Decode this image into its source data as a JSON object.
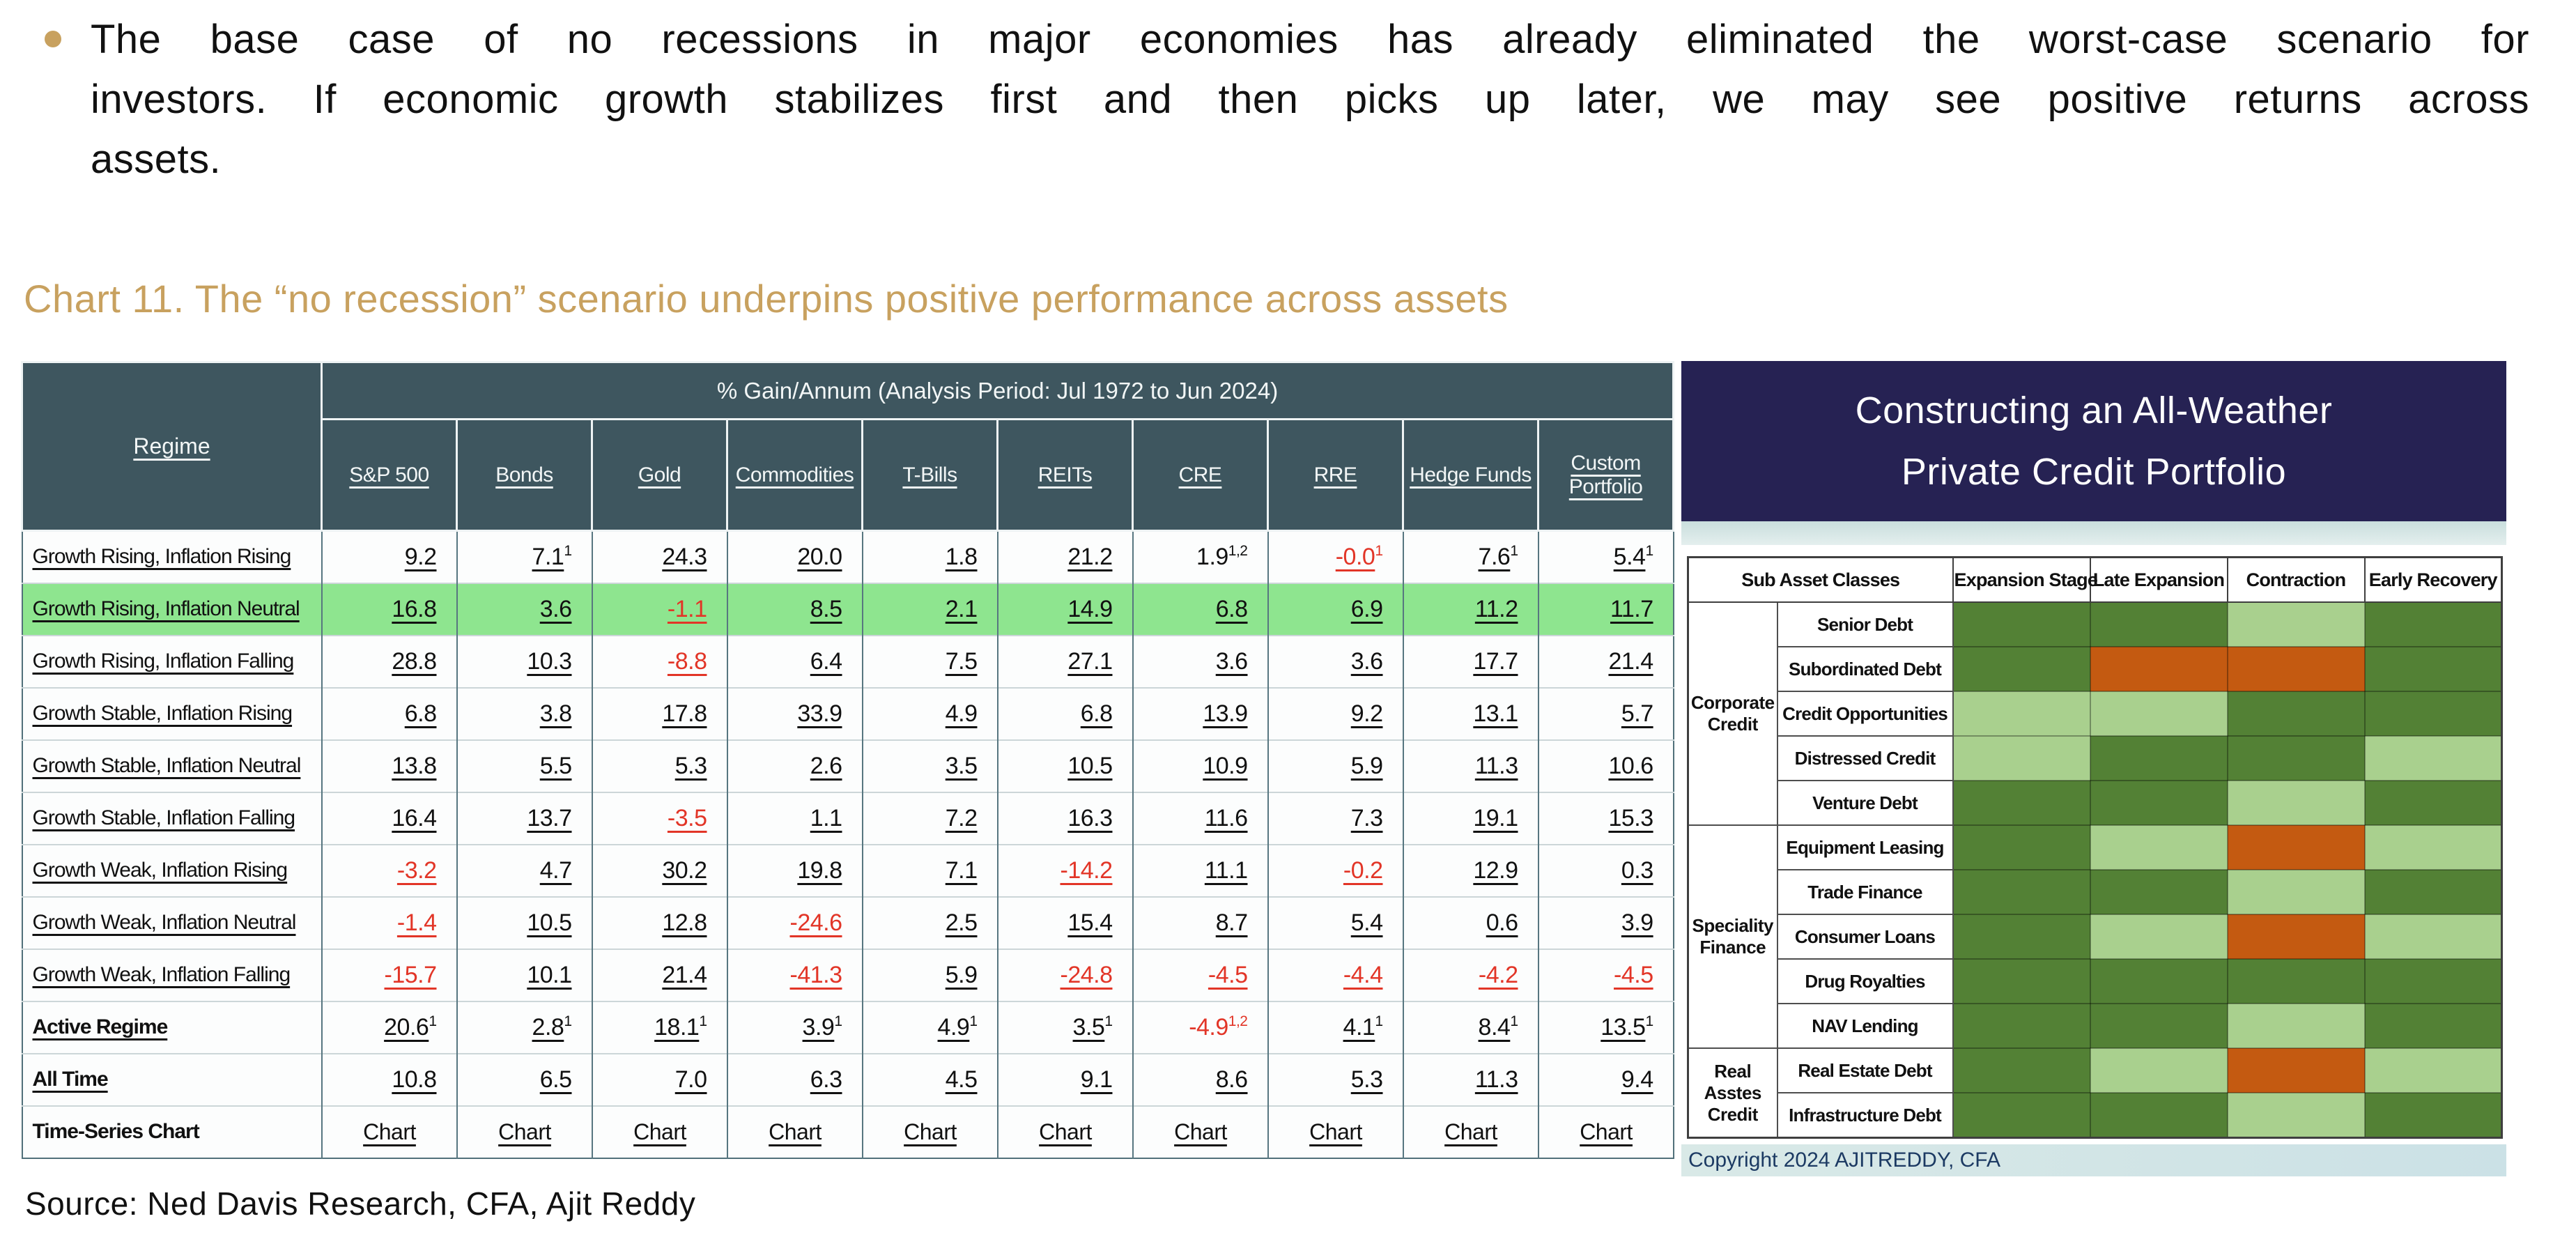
{
  "bullet": {
    "lines": [
      "The base case of no recessions in major economies has already eliminated the worst-case scenario for",
      "investors. If economic growth stabilizes first and then picks up later, we may see positive returns across",
      "assets."
    ]
  },
  "chart_title": "Chart 11. The “no recession” scenario underpins positive performance across assets",
  "source": "Source: Ned Davis Research, CFA, Ajit Reddy",
  "colors": {
    "accent_gold": "#c8a15f",
    "table_header_teal": "#3e565f",
    "highlight_green": "#8ee58f",
    "negative_red": "#e23527",
    "panel_navy": "#262253",
    "copyright_text_navy": "#1c3a63",
    "heatmap": {
      "dg": "#538135",
      "lg": "#A9D08E",
      "or": "#C45A11"
    }
  },
  "main_table": {
    "regime_header": "Regime",
    "span_header": "% Gain/Annum (Analysis Period: Jul 1972 to Jun 2024)",
    "columns": [
      "S&P 500",
      "Bonds",
      "Gold",
      "Commodities",
      "T-Bills",
      "REITs",
      "CRE",
      "RRE",
      "Hedge Funds",
      "Custom Portfolio"
    ],
    "rows": [
      {
        "label": "Growth Rising, Inflation Rising",
        "cells": [
          {
            "v": "9.2"
          },
          {
            "v": "7.1",
            "sup": "1"
          },
          {
            "v": "24.3"
          },
          {
            "v": "20.0"
          },
          {
            "v": "1.8"
          },
          {
            "v": "21.2"
          },
          {
            "v": "1.9",
            "sup": "1,2",
            "nu": true
          },
          {
            "v": "-0.0",
            "sup": "1"
          },
          {
            "v": "7.6",
            "sup": "1"
          },
          {
            "v": "5.4",
            "sup": "1"
          }
        ]
      },
      {
        "label": "Growth Rising, Inflation Neutral",
        "highlight": true,
        "cells": [
          {
            "v": "16.8"
          },
          {
            "v": "3.6"
          },
          {
            "v": "-1.1"
          },
          {
            "v": "8.5"
          },
          {
            "v": "2.1"
          },
          {
            "v": "14.9"
          },
          {
            "v": "6.8"
          },
          {
            "v": "6.9"
          },
          {
            "v": "11.2"
          },
          {
            "v": "11.7"
          }
        ]
      },
      {
        "label": "Growth Rising, Inflation Falling",
        "cells": [
          {
            "v": "28.8"
          },
          {
            "v": "10.3"
          },
          {
            "v": "-8.8"
          },
          {
            "v": "6.4"
          },
          {
            "v": "7.5"
          },
          {
            "v": "27.1"
          },
          {
            "v": "3.6"
          },
          {
            "v": "3.6"
          },
          {
            "v": "17.7"
          },
          {
            "v": "21.4"
          }
        ]
      },
      {
        "label": "Growth Stable, Inflation Rising",
        "cells": [
          {
            "v": "6.8"
          },
          {
            "v": "3.8"
          },
          {
            "v": "17.8"
          },
          {
            "v": "33.9"
          },
          {
            "v": "4.9"
          },
          {
            "v": "6.8"
          },
          {
            "v": "13.9"
          },
          {
            "v": "9.2"
          },
          {
            "v": "13.1"
          },
          {
            "v": "5.7"
          }
        ]
      },
      {
        "label": "Growth Stable, Inflation Neutral",
        "cells": [
          {
            "v": "13.8"
          },
          {
            "v": "5.5"
          },
          {
            "v": "5.3"
          },
          {
            "v": "2.6"
          },
          {
            "v": "3.5"
          },
          {
            "v": "10.5"
          },
          {
            "v": "10.9"
          },
          {
            "v": "5.9"
          },
          {
            "v": "11.3"
          },
          {
            "v": "10.6"
          }
        ]
      },
      {
        "label": "Growth Stable, Inflation Falling",
        "cells": [
          {
            "v": "16.4"
          },
          {
            "v": "13.7"
          },
          {
            "v": "-3.5"
          },
          {
            "v": "1.1"
          },
          {
            "v": "7.2"
          },
          {
            "v": "16.3"
          },
          {
            "v": "11.6"
          },
          {
            "v": "7.3"
          },
          {
            "v": "19.1"
          },
          {
            "v": "15.3"
          }
        ]
      },
      {
        "label": "Growth Weak, Inflation Rising",
        "cells": [
          {
            "v": "-3.2"
          },
          {
            "v": "4.7"
          },
          {
            "v": "30.2"
          },
          {
            "v": "19.8"
          },
          {
            "v": "7.1"
          },
          {
            "v": "-14.2"
          },
          {
            "v": "11.1"
          },
          {
            "v": "-0.2"
          },
          {
            "v": "12.9"
          },
          {
            "v": "0.3"
          }
        ]
      },
      {
        "label": "Growth Weak, Inflation Neutral",
        "cells": [
          {
            "v": "-1.4"
          },
          {
            "v": "10.5"
          },
          {
            "v": "12.8"
          },
          {
            "v": "-24.6"
          },
          {
            "v": "2.5"
          },
          {
            "v": "15.4"
          },
          {
            "v": "8.7"
          },
          {
            "v": "5.4"
          },
          {
            "v": "0.6"
          },
          {
            "v": "3.9"
          }
        ]
      },
      {
        "label": "Growth Weak, Inflation Falling",
        "cells": [
          {
            "v": "-15.7"
          },
          {
            "v": "10.1"
          },
          {
            "v": "21.4"
          },
          {
            "v": "-41.3"
          },
          {
            "v": "5.9"
          },
          {
            "v": "-24.8"
          },
          {
            "v": "-4.5"
          },
          {
            "v": "-4.4"
          },
          {
            "v": "-4.2"
          },
          {
            "v": "-4.5"
          }
        ]
      },
      {
        "label": "Active Regime",
        "bold": true,
        "cells": [
          {
            "v": "20.6",
            "sup": "1"
          },
          {
            "v": "2.8",
            "sup": "1"
          },
          {
            "v": "18.1",
            "sup": "1"
          },
          {
            "v": "3.9",
            "sup": "1"
          },
          {
            "v": "4.9",
            "sup": "1"
          },
          {
            "v": "3.5",
            "sup": "1"
          },
          {
            "v": "-4.9",
            "sup": "1,2",
            "nu": true
          },
          {
            "v": "4.1",
            "sup": "1"
          },
          {
            "v": "8.4",
            "sup": "1"
          },
          {
            "v": "13.5",
            "sup": "1"
          }
        ]
      },
      {
        "label": "All Time",
        "bold": true,
        "cells": [
          {
            "v": "10.8"
          },
          {
            "v": "6.5"
          },
          {
            "v": "7.0"
          },
          {
            "v": "6.3"
          },
          {
            "v": "4.5"
          },
          {
            "v": "9.1"
          },
          {
            "v": "8.6"
          },
          {
            "v": "5.3"
          },
          {
            "v": "11.3"
          },
          {
            "v": "9.4"
          }
        ]
      },
      {
        "label": "Time-Series Chart",
        "bold": true,
        "label_nu": true,
        "chart_row": true,
        "cells": [
          {
            "v": "Chart"
          },
          {
            "v": "Chart"
          },
          {
            "v": "Chart"
          },
          {
            "v": "Chart"
          },
          {
            "v": "Chart"
          },
          {
            "v": "Chart"
          },
          {
            "v": "Chart"
          },
          {
            "v": "Chart"
          },
          {
            "v": "Chart"
          },
          {
            "v": "Chart"
          }
        ]
      }
    ]
  },
  "right_panel": {
    "title_line1": "Constructing an All-Weather",
    "title_line2": "Private Credit Portfolio",
    "copyright": "Copyright 2024 AJITREDDY, CFA",
    "grid": {
      "corner_header": "Sub Asset Classes",
      "stage_headers": [
        "Expansion Stage",
        "Late Expansion",
        "Contraction",
        "Early Recovery"
      ],
      "groups": [
        {
          "label": "Corporate Credit",
          "rows": [
            {
              "name": "Senior Debt",
              "cells": [
                "dg",
                "dg",
                "lg",
                "dg"
              ]
            },
            {
              "name": "Subordinated Debt",
              "cells": [
                "dg",
                "or",
                "or",
                "dg"
              ]
            },
            {
              "name": "Credit Opportunities",
              "cells": [
                "lg",
                "lg",
                "dg",
                "dg"
              ]
            },
            {
              "name": "Distressed Credit",
              "cells": [
                "lg",
                "dg",
                "dg",
                "lg"
              ]
            },
            {
              "name": "Venture Debt",
              "cells": [
                "dg",
                "dg",
                "lg",
                "dg"
              ]
            }
          ]
        },
        {
          "label": "Speciality Finance",
          "rows": [
            {
              "name": "Equipment Leasing",
              "cells": [
                "dg",
                "lg",
                "or",
                "lg"
              ]
            },
            {
              "name": "Trade Finance",
              "cells": [
                "dg",
                "dg",
                "lg",
                "dg"
              ]
            },
            {
              "name": "Consumer Loans",
              "cells": [
                "dg",
                "lg",
                "or",
                "lg"
              ]
            },
            {
              "name": "Drug Royalties",
              "cells": [
                "dg",
                "dg",
                "dg",
                "dg"
              ]
            },
            {
              "name": "NAV Lending",
              "cells": [
                "dg",
                "dg",
                "lg",
                "dg"
              ]
            }
          ]
        },
        {
          "label": "Real Asstes Credit",
          "rows": [
            {
              "name": "Real Estate Debt",
              "cells": [
                "dg",
                "lg",
                "or",
                "lg"
              ]
            },
            {
              "name": "Infrastructure Debt",
              "cells": [
                "dg",
                "dg",
                "lg",
                "dg"
              ]
            }
          ]
        }
      ]
    }
  }
}
